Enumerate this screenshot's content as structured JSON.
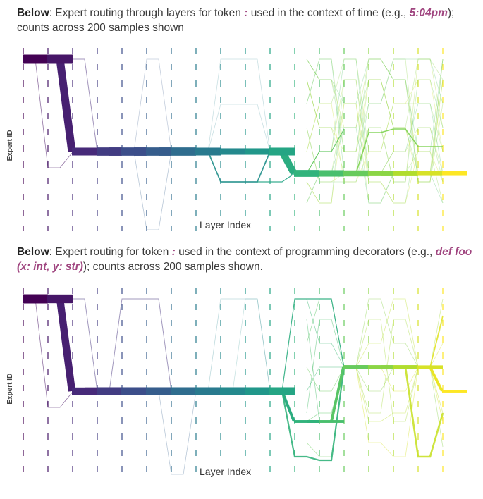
{
  "captions": [
    {
      "bold": "Below",
      "pre": ": Expert routing through layers for token ",
      "token": ":",
      "mid": " used in the context of time (e.g., ",
      "example": "5:04pm",
      "post": "); counts across 200 samples shown"
    },
    {
      "bold": "Below",
      "pre": ": Expert routing for token ",
      "token": ":",
      "mid": " used in the context of programming decorators (e.g., ",
      "example": "def foo (x: int, y: str)",
      "post": "); counts across 200 samples shown."
    }
  ],
  "colors": {
    "accent": "#a04680",
    "viridis_start": "#440154",
    "viridis_mid": "#21918c",
    "viridis_end": "#fde725"
  },
  "chart_data": [
    {
      "type": "sankey",
      "title": "",
      "xlabel": "Layer Index",
      "ylabel": "Expert ID",
      "grid": true,
      "layers": 18,
      "samples": 200,
      "main_path": [
        {
          "layer": 0,
          "expert_level": 0,
          "count": 200
        },
        {
          "layer": 1,
          "expert_level": 0,
          "count": 200
        },
        {
          "layer": 2,
          "expert_level": 4,
          "count": 170
        },
        {
          "layer": 3,
          "expert_level": 4,
          "count": 180
        },
        {
          "layer": 4,
          "expert_level": 4,
          "count": 180
        },
        {
          "layer": 5,
          "expert_level": 4,
          "count": 180
        },
        {
          "layer": 6,
          "expert_level": 4,
          "count": 180
        },
        {
          "layer": 7,
          "expert_level": 4,
          "count": 170
        },
        {
          "layer": 8,
          "expert_level": 4,
          "count": 140
        },
        {
          "layer": 9,
          "expert_level": 4,
          "count": 140
        },
        {
          "layer": 10,
          "expert_level": 4,
          "count": 170
        },
        {
          "layer": 11,
          "expert_level": 5,
          "count": 150
        },
        {
          "layer": 12,
          "expert_level": 5,
          "count": 140
        },
        {
          "layer": 13,
          "expert_level": 5,
          "count": 130
        },
        {
          "layer": 14,
          "expert_level": 5,
          "count": 120
        },
        {
          "layer": 15,
          "expert_level": 5,
          "count": 120
        },
        {
          "layer": 16,
          "expert_level": 5,
          "count": 110
        },
        {
          "layer": 17,
          "expert_level": 5,
          "count": 110
        }
      ]
    },
    {
      "type": "sankey",
      "title": "",
      "xlabel": "Layer Index",
      "ylabel": "Expert ID",
      "grid": true,
      "layers": 18,
      "samples": 200,
      "main_path": [
        {
          "layer": 0,
          "expert_level": 0,
          "count": 200
        },
        {
          "layer": 1,
          "expert_level": 0,
          "count": 190
        },
        {
          "layer": 2,
          "expert_level": 4,
          "count": 160
        },
        {
          "layer": 3,
          "expert_level": 4,
          "count": 170
        },
        {
          "layer": 4,
          "expert_level": 4,
          "count": 170
        },
        {
          "layer": 5,
          "expert_level": 4,
          "count": 170
        },
        {
          "layer": 6,
          "expert_level": 4,
          "count": 170
        },
        {
          "layer": 7,
          "expert_level": 4,
          "count": 170
        },
        {
          "layer": 8,
          "expert_level": 4,
          "count": 170
        },
        {
          "layer": 9,
          "expert_level": 4,
          "count": 170
        },
        {
          "layer": 10,
          "expert_level": 4,
          "count": 170
        },
        {
          "layer": 11,
          "expert_level": 6,
          "count": 60
        },
        {
          "layer": 12,
          "expert_level": 6,
          "count": 60
        },
        {
          "layer": 13,
          "expert_level": 3,
          "count": 90
        },
        {
          "layer": 14,
          "expert_level": 3,
          "count": 90
        },
        {
          "layer": 15,
          "expert_level": 3,
          "count": 90
        },
        {
          "layer": 16,
          "expert_level": 3,
          "count": 80
        },
        {
          "layer": 17,
          "expert_level": 4,
          "count": 60
        }
      ]
    }
  ]
}
